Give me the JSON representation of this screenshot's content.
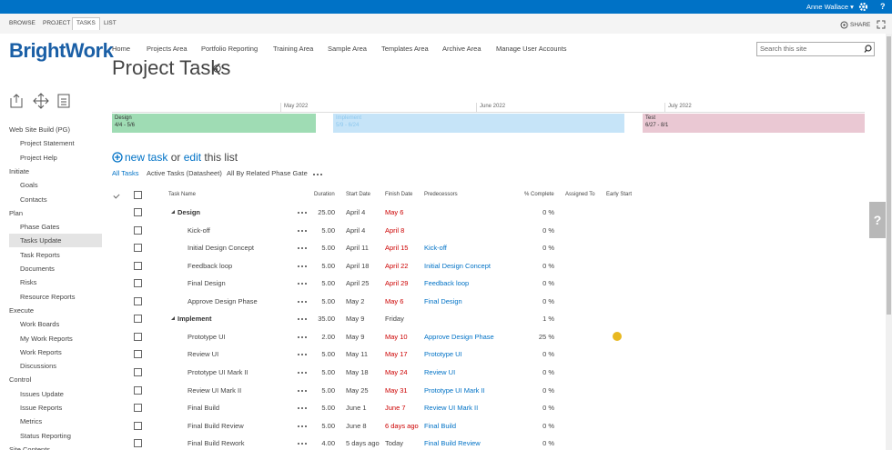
{
  "top_bar": {
    "user": "Anne Wallace ▾",
    "help": "?"
  },
  "ribbon": {
    "tabs": [
      "BROWSE",
      "PROJECT",
      "TASKS",
      "LIST"
    ],
    "active_tab": 2,
    "share": "SHARE"
  },
  "logo": "BrightWork",
  "top_nav": [
    "Home",
    "Projects Area",
    "Portfolio Reporting",
    "Training Area",
    "Sample Area",
    "Templates Area",
    "Archive Area",
    "Manage User Accounts"
  ],
  "search_placeholder": "Search this site",
  "page_title": "Project Tasks",
  "left_nav": [
    {
      "label": "Web Site Build (PG)",
      "level": 0
    },
    {
      "label": "Project Statement",
      "level": 1
    },
    {
      "label": "Project Help",
      "level": 1
    },
    {
      "label": "Initiate",
      "level": 0
    },
    {
      "label": "Goals",
      "level": 1
    },
    {
      "label": "Contacts",
      "level": 1
    },
    {
      "label": "Plan",
      "level": 0
    },
    {
      "label": "Phase Gates",
      "level": 1
    },
    {
      "label": "Tasks Update",
      "level": 1,
      "selected": true
    },
    {
      "label": "Task Reports",
      "level": 1
    },
    {
      "label": "Documents",
      "level": 1
    },
    {
      "label": "Risks",
      "level": 1
    },
    {
      "label": "Resource Reports",
      "level": 1
    },
    {
      "label": "Execute",
      "level": 0
    },
    {
      "label": "Work Boards",
      "level": 1
    },
    {
      "label": "My Work Reports",
      "level": 1
    },
    {
      "label": "Work Reports",
      "level": 1
    },
    {
      "label": "Discussions",
      "level": 1
    },
    {
      "label": "Control",
      "level": 0
    },
    {
      "label": "Issues Update",
      "level": 1
    },
    {
      "label": "Issue Reports",
      "level": 1
    },
    {
      "label": "Metrics",
      "level": 1
    },
    {
      "label": "Status Reporting",
      "level": 1
    },
    {
      "label": "Site Contents",
      "level": 0
    }
  ],
  "timeline": {
    "months": [
      "May 2022",
      "June 2022",
      "July 2022"
    ],
    "phases": [
      {
        "name": "Design",
        "dates": "4/4 - 5/6",
        "color": "#9fdcb4",
        "text_color": "#333"
      },
      {
        "name": "Implement",
        "dates": "5/9 - 6/24",
        "color": "#c6e4f8",
        "text_color": "#8cc7ee"
      },
      {
        "name": "Test",
        "dates": "6/27 - 8/1",
        "color": "#eac8d3",
        "text_color": "#333"
      }
    ]
  },
  "new_task": {
    "new": "new task",
    "or": "or",
    "edit": "edit",
    "rest": "this list"
  },
  "views": [
    "All Tasks",
    "Active Tasks (Datasheet)",
    "All By Related Phase Gate"
  ],
  "active_view": 0,
  "feedback": "?",
  "table": {
    "columns": [
      "Task Name",
      "Duration",
      "Start Date",
      "Finish Date",
      "Predecessors",
      "% Complete",
      "Assigned To",
      "Early Start"
    ],
    "rows": [
      {
        "name": "Design",
        "summary": true,
        "duration": "25.00",
        "start": "April 4",
        "finish": "May 6",
        "overdue": true,
        "predecessors": null,
        "complete": "0 %"
      },
      {
        "name": "Kick-off",
        "duration": "5.00",
        "start": "April 4",
        "finish": "April 8",
        "overdue": true,
        "predecessors": null,
        "complete": "0 %"
      },
      {
        "name": "Initial Design Concept",
        "duration": "5.00",
        "start": "April 11",
        "finish": "April 15",
        "overdue": true,
        "predecessors": "Kick-off",
        "complete": "0 %"
      },
      {
        "name": "Feedback loop",
        "duration": "5.00",
        "start": "April 18",
        "finish": "April 22",
        "overdue": true,
        "predecessors": "Initial Design Concept",
        "complete": "0 %"
      },
      {
        "name": "Final Design",
        "duration": "5.00",
        "start": "April 25",
        "finish": "April 29",
        "overdue": true,
        "predecessors": "Feedback loop",
        "complete": "0 %"
      },
      {
        "name": "Approve Design Phase",
        "duration": "5.00",
        "start": "May 2",
        "finish": "May 6",
        "overdue": true,
        "predecessors": "Final Design",
        "complete": "0 %"
      },
      {
        "name": "Implement",
        "summary": true,
        "duration": "35.00",
        "start": "May 9",
        "finish": "Friday",
        "overdue": false,
        "predecessors": null,
        "complete": "1 %"
      },
      {
        "name": "Prototype UI",
        "duration": "2.00",
        "start": "May 9",
        "finish": "May 10",
        "overdue": true,
        "predecessors": "Approve Design Phase",
        "complete": "25 %",
        "early_start": true
      },
      {
        "name": "Review UI",
        "duration": "5.00",
        "start": "May 11",
        "finish": "May 17",
        "overdue": true,
        "predecessors": "Prototype UI",
        "complete": "0 %"
      },
      {
        "name": "Prototype UI Mark II",
        "duration": "5.00",
        "start": "May 18",
        "finish": "May 24",
        "overdue": true,
        "predecessors": "Review UI",
        "complete": "0 %"
      },
      {
        "name": "Review UI Mark II",
        "duration": "5.00",
        "start": "May 25",
        "finish": "May 31",
        "overdue": true,
        "predecessors": "Prototype UI Mark II",
        "complete": "0 %"
      },
      {
        "name": "Final Build",
        "duration": "5.00",
        "start": "June 1",
        "finish": "June 7",
        "overdue": true,
        "predecessors": "Review UI Mark II",
        "complete": "0 %"
      },
      {
        "name": "Final Build Review",
        "duration": "5.00",
        "start": "June 8",
        "finish": "6 days ago",
        "overdue": true,
        "predecessors": "Final Build",
        "complete": "0 %"
      },
      {
        "name": "Final Build Rework",
        "duration": "4.00",
        "start": "5 days ago",
        "finish": "Today",
        "overdue": false,
        "predecessors": "Final Build Review",
        "complete": "0 %"
      }
    ]
  }
}
